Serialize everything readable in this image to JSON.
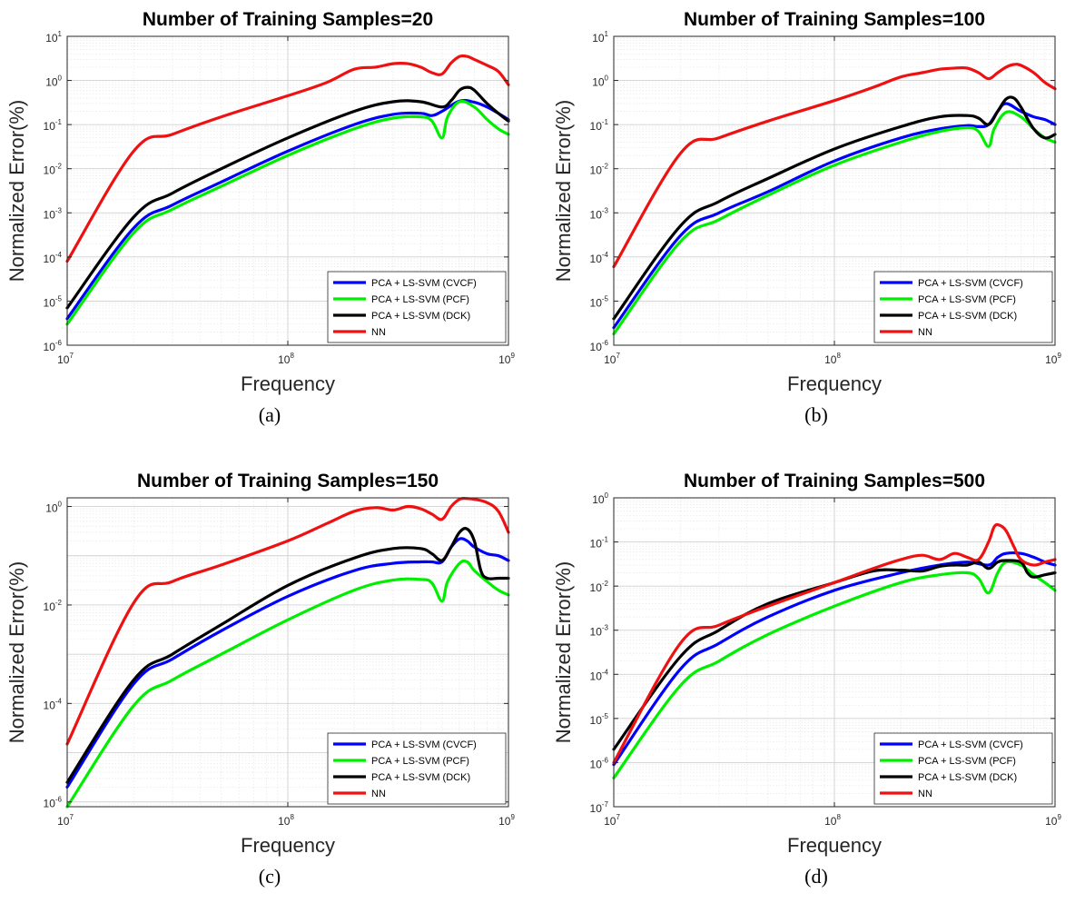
{
  "figure": {
    "panel_labels": [
      "(a)",
      "(b)",
      "(c)",
      "(d)"
    ]
  },
  "chart_data": [
    {
      "type": "line",
      "title": "Number of Training Samples=20",
      "xlabel": "Frequency",
      "ylabel": "Normalized Error(%)",
      "x_scale": "log",
      "y_scale": "log",
      "xlim": [
        10000000.0,
        1000000000.0
      ],
      "ylim": [
        1e-06,
        10
      ],
      "xticks": [
        {
          "b": "10",
          "e": "7"
        },
        {
          "b": "10",
          "e": "8"
        },
        {
          "b": "10",
          "e": "9"
        }
      ],
      "yticks": [
        {
          "b": "10",
          "e": "-6"
        },
        {
          "b": "10",
          "e": "-5"
        },
        {
          "b": "10",
          "e": "-4"
        },
        {
          "b": "10",
          "e": "-3"
        },
        {
          "b": "10",
          "e": "-2"
        },
        {
          "b": "10",
          "e": "-1"
        },
        {
          "b": "10",
          "e": "0"
        },
        {
          "b": "10",
          "e": "1"
        }
      ],
      "grid": true,
      "legend": "bottom-right",
      "series": [
        {
          "name": "PCA + LS-SVM (CVCF)",
          "color": "#0000ff",
          "x": [
            10000000.0,
            20000000.0,
            30000000.0,
            50000000.0,
            100000000.0,
            200000000.0,
            300000000.0,
            400000000.0,
            450000000.0,
            500000000.0,
            600000000.0,
            700000000.0,
            800000000.0,
            900000000.0,
            1000000000.0
          ],
          "y": [
            4e-06,
            0.00045,
            0.0015,
            0.005,
            0.025,
            0.1,
            0.17,
            0.18,
            0.16,
            0.2,
            0.34,
            0.32,
            0.25,
            0.18,
            0.13
          ]
        },
        {
          "name": "PCA + LS-SVM (PCF)",
          "color": "#00ee00",
          "x": [
            10000000.0,
            20000000.0,
            30000000.0,
            50000000.0,
            100000000.0,
            200000000.0,
            300000000.0,
            400000000.0,
            450000000.0,
            500000000.0,
            530000000.0,
            600000000.0,
            700000000.0,
            800000000.0,
            900000000.0,
            1000000000.0
          ],
          "y": [
            3e-06,
            0.00035,
            0.0012,
            0.004,
            0.02,
            0.08,
            0.14,
            0.15,
            0.12,
            0.05,
            0.15,
            0.33,
            0.25,
            0.13,
            0.08,
            0.06
          ]
        },
        {
          "name": "PCA + LS-SVM (DCK)",
          "color": "#000000",
          "x": [
            10000000.0,
            20000000.0,
            30000000.0,
            50000000.0,
            100000000.0,
            200000000.0,
            300000000.0,
            400000000.0,
            500000000.0,
            550000000.0,
            600000000.0,
            650000000.0,
            700000000.0,
            800000000.0,
            900000000.0,
            1000000000.0
          ],
          "y": [
            7e-06,
            0.0008,
            0.0028,
            0.01,
            0.05,
            0.2,
            0.33,
            0.33,
            0.25,
            0.35,
            0.6,
            0.7,
            0.6,
            0.3,
            0.18,
            0.12
          ]
        },
        {
          "name": "NN",
          "color": "#ee1111",
          "x": [
            10000000.0,
            20000000.0,
            30000000.0,
            50000000.0,
            100000000.0,
            150000000.0,
            200000000.0,
            250000000.0,
            300000000.0,
            350000000.0,
            400000000.0,
            450000000.0,
            500000000.0,
            550000000.0,
            600000000.0,
            650000000.0,
            700000000.0,
            800000000.0,
            900000000.0,
            1000000000.0
          ],
          "y": [
            8e-05,
            0.025,
            0.06,
            0.15,
            0.45,
            0.9,
            1.8,
            2.0,
            2.4,
            2.4,
            2.0,
            1.5,
            1.4,
            2.5,
            3.5,
            3.5,
            3.0,
            2.2,
            1.6,
            0.8
          ]
        }
      ]
    },
    {
      "type": "line",
      "title": "Number of Training Samples=100",
      "xlabel": "Frequency",
      "ylabel": "Normalized Error(%)",
      "x_scale": "log",
      "y_scale": "log",
      "xlim": [
        10000000.0,
        1000000000.0
      ],
      "ylim": [
        1e-06,
        10
      ],
      "xticks": [
        {
          "b": "10",
          "e": "7"
        },
        {
          "b": "10",
          "e": "8"
        },
        {
          "b": "10",
          "e": "9"
        }
      ],
      "yticks": [
        {
          "b": "10",
          "e": "-6"
        },
        {
          "b": "10",
          "e": "-5"
        },
        {
          "b": "10",
          "e": "-4"
        },
        {
          "b": "10",
          "e": "-3"
        },
        {
          "b": "10",
          "e": "-2"
        },
        {
          "b": "10",
          "e": "-1"
        },
        {
          "b": "10",
          "e": "0"
        },
        {
          "b": "10",
          "e": "1"
        }
      ],
      "grid": true,
      "legend": "bottom-right",
      "series": [
        {
          "name": "PCA + LS-SVM (CVCF)",
          "color": "#0000ff",
          "x": [
            10000000.0,
            20000000.0,
            30000000.0,
            50000000.0,
            100000000.0,
            200000000.0,
            300000000.0,
            400000000.0,
            450000000.0,
            500000000.0,
            550000000.0,
            600000000.0,
            700000000.0,
            800000000.0,
            900000000.0,
            1000000000.0
          ],
          "y": [
            2.5e-06,
            0.0003,
            0.001,
            0.003,
            0.015,
            0.05,
            0.08,
            0.095,
            0.09,
            0.1,
            0.2,
            0.3,
            0.2,
            0.15,
            0.13,
            0.1
          ]
        },
        {
          "name": "PCA + LS-SVM (PCF)",
          "color": "#00ee00",
          "x": [
            10000000.0,
            20000000.0,
            30000000.0,
            50000000.0,
            100000000.0,
            200000000.0,
            300000000.0,
            400000000.0,
            450000000.0,
            500000000.0,
            530000000.0,
            600000000.0,
            700000000.0,
            800000000.0,
            900000000.0,
            1000000000.0
          ],
          "y": [
            1.8e-06,
            0.00022,
            0.0007,
            0.0025,
            0.012,
            0.04,
            0.07,
            0.085,
            0.07,
            0.032,
            0.08,
            0.19,
            0.15,
            0.08,
            0.05,
            0.04
          ]
        },
        {
          "name": "PCA + LS-SVM (DCK)",
          "color": "#000000",
          "x": [
            10000000.0,
            20000000.0,
            30000000.0,
            50000000.0,
            100000000.0,
            200000000.0,
            300000000.0,
            400000000.0,
            450000000.0,
            500000000.0,
            550000000.0,
            600000000.0,
            650000000.0,
            700000000.0,
            800000000.0,
            900000000.0,
            1000000000.0
          ],
          "y": [
            4e-06,
            0.0005,
            0.0018,
            0.006,
            0.028,
            0.09,
            0.15,
            0.16,
            0.14,
            0.1,
            0.2,
            0.38,
            0.4,
            0.25,
            0.08,
            0.05,
            0.06
          ]
        },
        {
          "name": "NN",
          "color": "#ee1111",
          "x": [
            10000000.0,
            20000000.0,
            30000000.0,
            50000000.0,
            100000000.0,
            150000000.0,
            200000000.0,
            250000000.0,
            300000000.0,
            350000000.0,
            400000000.0,
            450000000.0,
            500000000.0,
            550000000.0,
            600000000.0,
            650000000.0,
            700000000.0,
            800000000.0,
            900000000.0,
            1000000000.0
          ],
          "y": [
            6e-05,
            0.022,
            0.05,
            0.12,
            0.35,
            0.7,
            1.2,
            1.5,
            1.8,
            1.9,
            1.9,
            1.5,
            1.1,
            1.5,
            2.0,
            2.3,
            2.2,
            1.5,
            0.9,
            0.65
          ]
        }
      ]
    },
    {
      "type": "line",
      "title": "Number of Training Samples=150",
      "xlabel": "Frequency",
      "ylabel": "Normalized Error(%)",
      "x_scale": "log",
      "y_scale": "log",
      "xlim": [
        10000000.0,
        1000000000.0
      ],
      "ylim": [
        8e-07,
        1.5
      ],
      "xticks": [
        {
          "b": "10",
          "e": "7"
        },
        {
          "b": "10",
          "e": "8"
        },
        {
          "b": "10",
          "e": "9"
        }
      ],
      "yticks": [
        {
          "b": "10",
          "e": "-6"
        },
        {
          "b": "10",
          "e": "-4"
        },
        {
          "b": "10",
          "e": "-2"
        },
        {
          "b": "10",
          "e": "0"
        }
      ],
      "grid": true,
      "legend": "bottom-right",
      "series": [
        {
          "name": "PCA + LS-SVM (CVCF)",
          "color": "#0000ff",
          "x": [
            10000000.0,
            20000000.0,
            30000000.0,
            50000000.0,
            100000000.0,
            200000000.0,
            300000000.0,
            400000000.0,
            450000000.0,
            500000000.0,
            550000000.0,
            600000000.0,
            650000000.0,
            700000000.0,
            800000000.0,
            900000000.0,
            1000000000.0
          ],
          "y": [
            2e-06,
            0.00025,
            0.0008,
            0.003,
            0.015,
            0.05,
            0.07,
            0.075,
            0.075,
            0.075,
            0.15,
            0.22,
            0.2,
            0.15,
            0.11,
            0.1,
            0.08
          ]
        },
        {
          "name": "PCA + LS-SVM (PCF)",
          "color": "#00ee00",
          "x": [
            10000000.0,
            20000000.0,
            30000000.0,
            50000000.0,
            100000000.0,
            200000000.0,
            300000000.0,
            400000000.0,
            450000000.0,
            500000000.0,
            530000000.0,
            600000000.0,
            650000000.0,
            700000000.0,
            800000000.0,
            900000000.0,
            1000000000.0
          ],
          "y": [
            8e-07,
            9e-05,
            0.0003,
            0.001,
            0.005,
            0.02,
            0.032,
            0.033,
            0.028,
            0.012,
            0.03,
            0.07,
            0.075,
            0.05,
            0.03,
            0.02,
            0.016
          ]
        },
        {
          "name": "PCA + LS-SVM (DCK)",
          "color": "#000000",
          "x": [
            10000000.0,
            20000000.0,
            30000000.0,
            50000000.0,
            100000000.0,
            200000000.0,
            300000000.0,
            400000000.0,
            450000000.0,
            500000000.0,
            550000000.0,
            600000000.0,
            650000000.0,
            700000000.0,
            750000000.0,
            800000000.0,
            900000000.0,
            1000000000.0
          ],
          "y": [
            2.5e-06,
            0.0003,
            0.001,
            0.004,
            0.025,
            0.09,
            0.14,
            0.14,
            0.11,
            0.08,
            0.15,
            0.3,
            0.35,
            0.2,
            0.05,
            0.035,
            0.035,
            0.035
          ]
        },
        {
          "name": "NN",
          "color": "#ee1111",
          "x": [
            10000000.0,
            20000000.0,
            30000000.0,
            50000000.0,
            100000000.0,
            150000000.0,
            200000000.0,
            250000000.0,
            300000000.0,
            350000000.0,
            400000000.0,
            450000000.0,
            500000000.0,
            550000000.0,
            600000000.0,
            650000000.0,
            700000000.0,
            800000000.0,
            900000000.0,
            1000000000.0
          ],
          "y": [
            1.5e-05,
            0.011,
            0.03,
            0.065,
            0.2,
            0.45,
            0.8,
            0.95,
            0.85,
            1.0,
            0.9,
            0.7,
            0.55,
            1.0,
            1.4,
            1.45,
            1.4,
            1.2,
            0.8,
            0.3
          ]
        }
      ]
    },
    {
      "type": "line",
      "title": "Number of Training Samples=500",
      "xlabel": "Frequency",
      "ylabel": "Normalized Error(%)",
      "x_scale": "log",
      "y_scale": "log",
      "xlim": [
        10000000.0,
        1000000000.0
      ],
      "ylim": [
        1e-07,
        1
      ],
      "xticks": [
        {
          "b": "10",
          "e": "7"
        },
        {
          "b": "10",
          "e": "8"
        },
        {
          "b": "10",
          "e": "9"
        }
      ],
      "yticks": [
        {
          "b": "10",
          "e": "-7"
        },
        {
          "b": "10",
          "e": "-6"
        },
        {
          "b": "10",
          "e": "-5"
        },
        {
          "b": "10",
          "e": "-4"
        },
        {
          "b": "10",
          "e": "-3"
        },
        {
          "b": "10",
          "e": "-2"
        },
        {
          "b": "10",
          "e": "-1"
        },
        {
          "b": "10",
          "e": "0"
        }
      ],
      "grid": true,
      "legend": "bottom-right",
      "series": [
        {
          "name": "PCA + LS-SVM (CVCF)",
          "color": "#0000ff",
          "x": [
            10000000.0,
            20000000.0,
            30000000.0,
            50000000.0,
            100000000.0,
            200000000.0,
            300000000.0,
            400000000.0,
            500000000.0,
            550000000.0,
            600000000.0,
            700000000.0,
            800000000.0,
            900000000.0,
            1000000000.0
          ],
          "y": [
            9e-07,
            0.00013,
            0.0005,
            0.002,
            0.008,
            0.02,
            0.03,
            0.035,
            0.03,
            0.045,
            0.055,
            0.055,
            0.045,
            0.035,
            0.03
          ]
        },
        {
          "name": "PCA + LS-SVM (PCF)",
          "color": "#00ee00",
          "x": [
            10000000.0,
            20000000.0,
            30000000.0,
            50000000.0,
            100000000.0,
            200000000.0,
            300000000.0,
            400000000.0,
            450000000.0,
            500000000.0,
            550000000.0,
            600000000.0,
            700000000.0,
            800000000.0,
            900000000.0,
            1000000000.0
          ],
          "y": [
            4.5e-07,
            5.5e-05,
            0.0002,
            0.0008,
            0.0035,
            0.012,
            0.018,
            0.02,
            0.015,
            0.007,
            0.02,
            0.035,
            0.03,
            0.018,
            0.012,
            0.008
          ]
        },
        {
          "name": "PCA + LS-SVM (DCK)",
          "color": "#000000",
          "x": [
            10000000.0,
            20000000.0,
            30000000.0,
            50000000.0,
            100000000.0,
            150000000.0,
            200000000.0,
            250000000.0,
            300000000.0,
            350000000.0,
            400000000.0,
            450000000.0,
            500000000.0,
            550000000.0,
            600000000.0,
            700000000.0,
            750000000.0,
            800000000.0,
            900000000.0,
            1000000000.0
          ],
          "y": [
            2e-06,
            0.00025,
            0.001,
            0.004,
            0.012,
            0.022,
            0.023,
            0.022,
            0.028,
            0.03,
            0.03,
            0.035,
            0.025,
            0.035,
            0.038,
            0.035,
            0.02,
            0.016,
            0.018,
            0.02
          ]
        },
        {
          "name": "NN",
          "color": "#ee1111",
          "x": [
            10000000.0,
            20000000.0,
            30000000.0,
            50000000.0,
            100000000.0,
            150000000.0,
            200000000.0,
            250000000.0,
            300000000.0,
            350000000.0,
            400000000.0,
            450000000.0,
            500000000.0,
            530000000.0,
            560000000.0,
            600000000.0,
            650000000.0,
            700000000.0,
            800000000.0,
            900000000.0,
            1000000000.0
          ],
          "y": [
            1e-06,
            0.0005,
            0.0013,
            0.0035,
            0.012,
            0.025,
            0.04,
            0.05,
            0.04,
            0.055,
            0.045,
            0.04,
            0.1,
            0.22,
            0.24,
            0.18,
            0.08,
            0.04,
            0.03,
            0.035,
            0.04
          ]
        }
      ]
    }
  ]
}
